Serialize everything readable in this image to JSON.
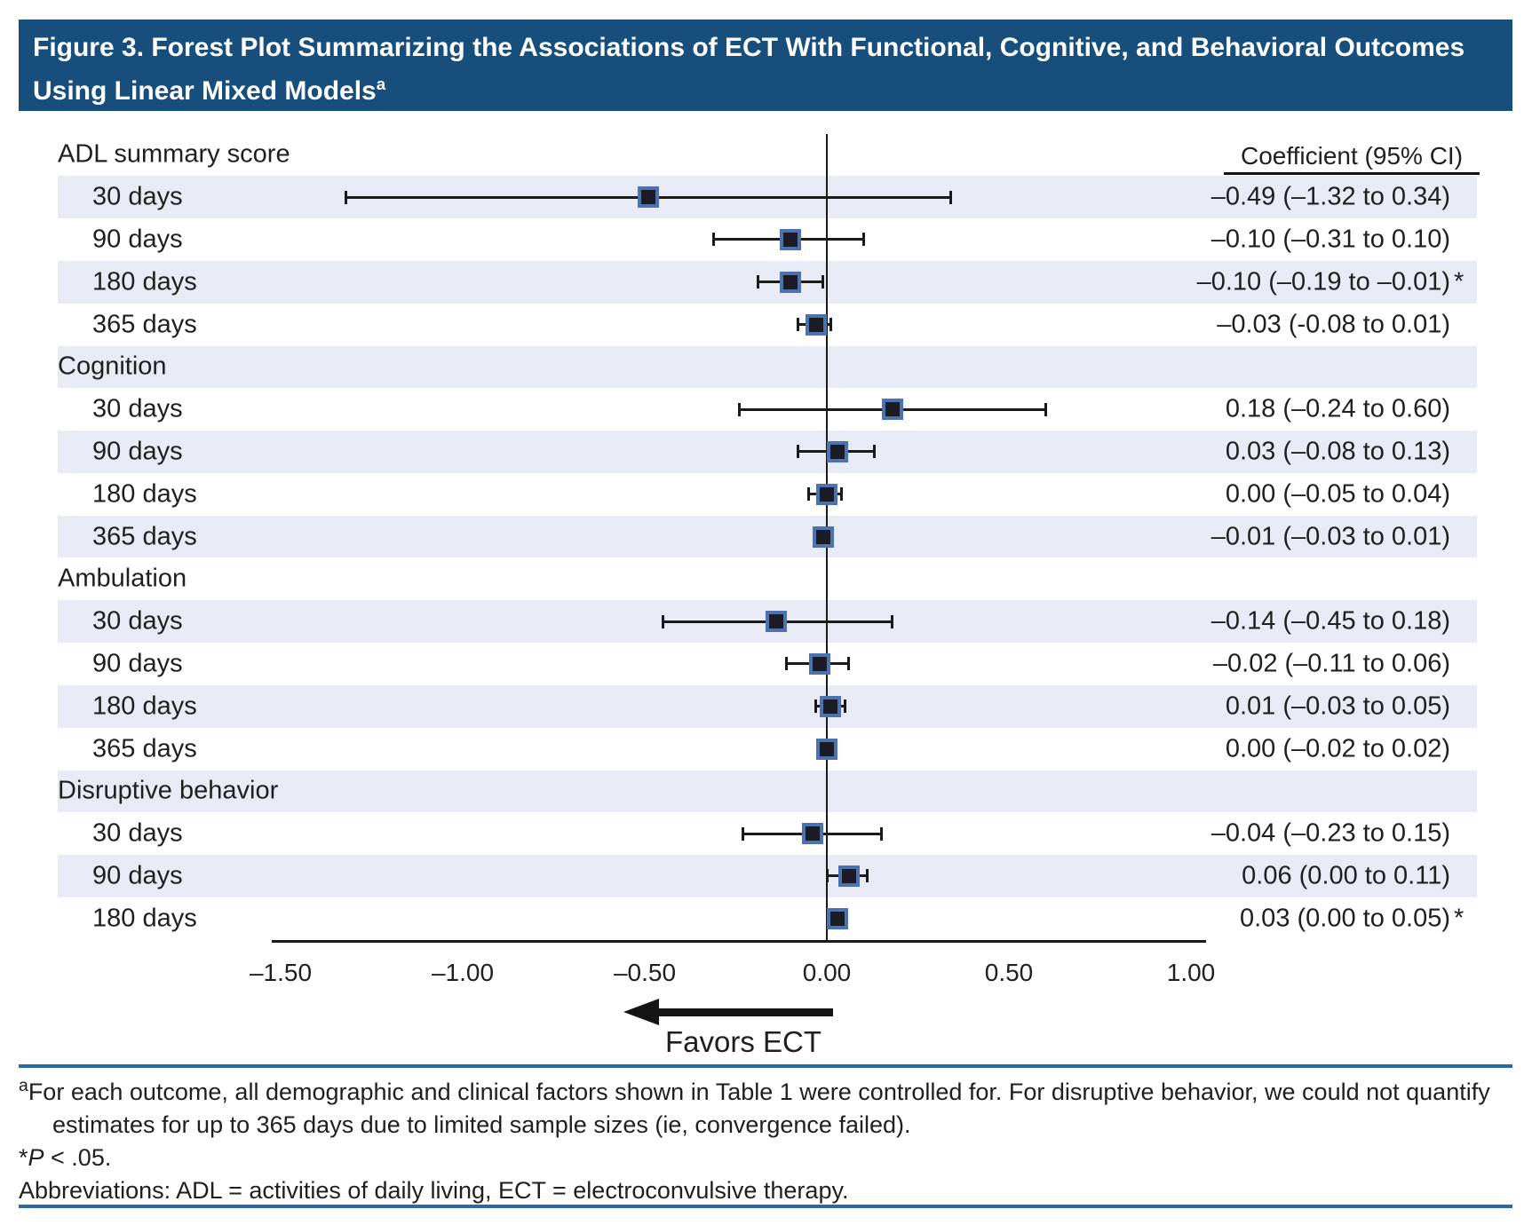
{
  "title": {
    "text": "Figure 3. Forest Plot Summarizing the Associations of ECT With Functional, Cognitive, and Behavioral Outcomes Using Linear Mixed Models",
    "superscript": "a"
  },
  "chart_data": {
    "type": "forest",
    "value_column_header": "Coefficient (95% CI)",
    "direction_label": "Favors ECT",
    "significance_marker": "*",
    "x_axis": {
      "tick_values": [
        -1.5,
        -1.0,
        -0.5,
        0.0,
        0.5,
        1.0
      ],
      "tick_labels": [
        "–1.50",
        "–1.00",
        "–0.50",
        "0.00",
        "0.50",
        "1.00"
      ],
      "range": [
        -1.52,
        1.04
      ],
      "reference_line": 0.0,
      "grid": false
    },
    "groups": [
      {
        "label": "ADL summary score",
        "rows": [
          {
            "label": "30 days",
            "coef": -0.49,
            "ci_low": -1.32,
            "ci_high": 0.34,
            "display": "–0.49 (–1.32 to 0.34)",
            "significant": false
          },
          {
            "label": "90 days",
            "coef": -0.1,
            "ci_low": -0.31,
            "ci_high": 0.1,
            "display": "–0.10 (–0.31 to 0.10)",
            "significant": false
          },
          {
            "label": "180 days",
            "coef": -0.1,
            "ci_low": -0.19,
            "ci_high": -0.01,
            "display": "–0.10 (–0.19 to –0.01)",
            "significant": true
          },
          {
            "label": "365 days",
            "coef": -0.03,
            "ci_low": -0.08,
            "ci_high": 0.01,
            "display": "–0.03 (-0.08 to 0.01)",
            "significant": false
          }
        ]
      },
      {
        "label": "Cognition",
        "rows": [
          {
            "label": "30 days",
            "coef": 0.18,
            "ci_low": -0.24,
            "ci_high": 0.6,
            "display": "0.18 (–0.24 to 0.60)",
            "significant": false
          },
          {
            "label": "90 days",
            "coef": 0.03,
            "ci_low": -0.08,
            "ci_high": 0.13,
            "display": "0.03 (–0.08 to 0.13)",
            "significant": false
          },
          {
            "label": "180 days",
            "coef": 0.0,
            "ci_low": -0.05,
            "ci_high": 0.04,
            "display": "0.00 (–0.05 to 0.04)",
            "significant": false
          },
          {
            "label": "365 days",
            "coef": -0.01,
            "ci_low": -0.03,
            "ci_high": 0.01,
            "display": "–0.01 (–0.03 to 0.01)",
            "significant": false
          }
        ]
      },
      {
        "label": "Ambulation",
        "rows": [
          {
            "label": "30 days",
            "coef": -0.14,
            "ci_low": -0.45,
            "ci_high": 0.18,
            "display": "–0.14 (–0.45 to 0.18)",
            "significant": false
          },
          {
            "label": "90 days",
            "coef": -0.02,
            "ci_low": -0.11,
            "ci_high": 0.06,
            "display": "–0.02 (–0.11 to 0.06)",
            "significant": false
          },
          {
            "label": "180 days",
            "coef": 0.01,
            "ci_low": -0.03,
            "ci_high": 0.05,
            "display": "0.01 (–0.03 to 0.05)",
            "significant": false
          },
          {
            "label": "365 days",
            "coef": 0.0,
            "ci_low": -0.02,
            "ci_high": 0.02,
            "display": "0.00 (–0.02 to 0.02)",
            "significant": false
          }
        ]
      },
      {
        "label": "Disruptive behavior",
        "rows": [
          {
            "label": "30 days",
            "coef": -0.04,
            "ci_low": -0.23,
            "ci_high": 0.15,
            "display": "–0.04 (–0.23 to 0.15)",
            "significant": false
          },
          {
            "label": "90 days",
            "coef": 0.06,
            "ci_low": 0.0,
            "ci_high": 0.11,
            "display": "0.06 (0.00 to 0.11)",
            "significant": false
          },
          {
            "label": "180 days",
            "coef": 0.03,
            "ci_low": 0.0,
            "ci_high": 0.05,
            "display": "0.03 (0.00 to 0.05)",
            "significant": true
          }
        ]
      }
    ]
  },
  "footnotes": {
    "a_marker": "a",
    "a_text": "For each outcome, all demographic and clinical factors shown in Table 1 were controlled for. For disruptive behavior, we could not quantify estimates for up to 365 days due to limited sample sizes (ie, convergence failed).",
    "sig_symbol": "*",
    "sig_p": "P",
    "sig_rest": " < .05.",
    "abbreviations": "Abbreviations: ADL = activities of daily living, ECT = electroconvulsive therapy."
  },
  "colors": {
    "header_bg": "#174E7B",
    "header_text": "#FFFFFF",
    "stripe": "#E8EBF6",
    "marker_fill": "#1C1C26",
    "marker_border": "#4C72B0",
    "line": "#1A1A1A",
    "separator_blue": "#2A6AA2",
    "text": "#1F1F1F"
  }
}
